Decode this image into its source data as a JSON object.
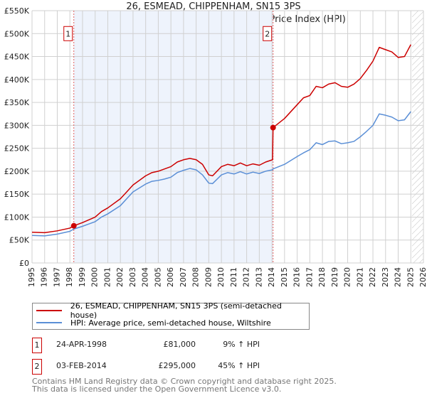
{
  "chart_data": {
    "type": "line",
    "title": "26, ESMEAD, CHIPPENHAM, SN15 3PS",
    "subtitle": "Price paid vs. HM Land Registry's House Price Index (HPI)",
    "xlim": [
      1995,
      2026
    ],
    "ylim": [
      0,
      550000
    ],
    "yticks": [
      0,
      50000,
      100000,
      150000,
      200000,
      250000,
      300000,
      350000,
      400000,
      450000,
      500000,
      550000
    ],
    "ytick_labels": [
      "£0",
      "£50K",
      "£100K",
      "£150K",
      "£200K",
      "£250K",
      "£300K",
      "£350K",
      "£400K",
      "£450K",
      "£500K",
      "£550K"
    ],
    "xtick_labels": [
      "1995",
      "1996",
      "1997",
      "1998",
      "1999",
      "2000",
      "2001",
      "2002",
      "2003",
      "2004",
      "2005",
      "2006",
      "2007",
      "2008",
      "2009",
      "2010",
      "2011",
      "2012",
      "2013",
      "2014",
      "2015",
      "2016",
      "2017",
      "2018",
      "2019",
      "2020",
      "2021",
      "2022",
      "2023",
      "2024",
      "2025",
      "2026"
    ],
    "grid": true,
    "shaded_range": [
      1998.31,
      2014.09
    ],
    "hatched_from": 2025.1,
    "series": [
      {
        "name": "26, ESMEAD, CHIPPENHAM, SN15 3PS (semi-detached house)",
        "color": "#cc0000",
        "x": [
          1995,
          1996,
          1997,
          1998,
          1998.31,
          1999,
          2000,
          2000.5,
          2001,
          2002,
          2002.5,
          2003,
          2004,
          2004.5,
          2005,
          2005.5,
          2006,
          2006.5,
          2007,
          2007.5,
          2008,
          2008.5,
          2009,
          2009.3,
          2010,
          2010.5,
          2011,
          2011.5,
          2012,
          2012.5,
          2013,
          2013.5,
          2014.05,
          2014.09,
          2015,
          2016,
          2016.5,
          2017,
          2017.5,
          2018,
          2018.5,
          2019,
          2019.5,
          2020,
          2020.5,
          2021,
          2021.5,
          2022,
          2022.5,
          2023,
          2023.5,
          2024,
          2024.5,
          2025
        ],
        "y": [
          67000,
          66000,
          70000,
          76000,
          81000,
          88000,
          100000,
          112000,
          120000,
          140000,
          155000,
          170000,
          190000,
          197000,
          200000,
          205000,
          210000,
          220000,
          225000,
          228000,
          225000,
          215000,
          192000,
          190000,
          210000,
          215000,
          212000,
          218000,
          212000,
          216000,
          213000,
          220000,
          225000,
          295000,
          315000,
          345000,
          360000,
          365000,
          385000,
          382000,
          390000,
          393000,
          385000,
          383000,
          390000,
          402000,
          420000,
          440000,
          470000,
          465000,
          460000,
          448000,
          450000,
          476000
        ]
      },
      {
        "name": "HPI: Average price, semi-detached house, Wiltshire",
        "color": "#5b8fd6",
        "x": [
          1995,
          1996,
          1997,
          1998,
          1998.31,
          1999,
          2000,
          2000.5,
          2001,
          2002,
          2002.5,
          2003,
          2004,
          2004.5,
          2005,
          2005.5,
          2006,
          2006.5,
          2007,
          2007.5,
          2008,
          2008.5,
          2009,
          2009.3,
          2010,
          2010.5,
          2011,
          2011.5,
          2012,
          2012.5,
          2013,
          2013.5,
          2014.05,
          2014.09,
          2015,
          2016,
          2016.5,
          2017,
          2017.5,
          2018,
          2018.5,
          2019,
          2019.5,
          2020,
          2020.5,
          2021,
          2021.5,
          2022,
          2022.5,
          2023,
          2023.5,
          2024,
          2024.5,
          2025
        ],
        "y": [
          60000,
          59000,
          63000,
          69000,
          74000,
          80000,
          90000,
          100000,
          107000,
          125000,
          140000,
          155000,
          172000,
          178000,
          180000,
          183000,
          187000,
          197000,
          202000,
          206000,
          203000,
          192000,
          174000,
          173000,
          192000,
          197000,
          194000,
          199000,
          194000,
          198000,
          195000,
          200000,
          203000,
          205000,
          215000,
          232000,
          240000,
          247000,
          262000,
          258000,
          265000,
          266000,
          260000,
          262000,
          265000,
          275000,
          287000,
          300000,
          325000,
          322000,
          318000,
          310000,
          312000,
          330000
        ]
      }
    ],
    "annotations": [
      {
        "label": "1",
        "x": 1998.31,
        "y": 81000
      },
      {
        "label": "2",
        "x": 2014.09,
        "y": 295000
      }
    ]
  },
  "legend": {
    "red": "26, ESMEAD, CHIPPENHAM, SN15 3PS (semi-detached house)",
    "blue": "HPI: Average price, semi-detached house, Wiltshire"
  },
  "transactions": [
    {
      "num": "1",
      "date": "24-APR-1998",
      "price": "£81,000",
      "hpi": "9% ↑ HPI"
    },
    {
      "num": "2",
      "date": "03-FEB-2014",
      "price": "£295,000",
      "hpi": "45% ↑ HPI"
    }
  ],
  "footer": {
    "line1": "Contains HM Land Registry data © Crown copyright and database right 2025.",
    "line2": "This data is licensed under the Open Government Licence v3.0."
  }
}
